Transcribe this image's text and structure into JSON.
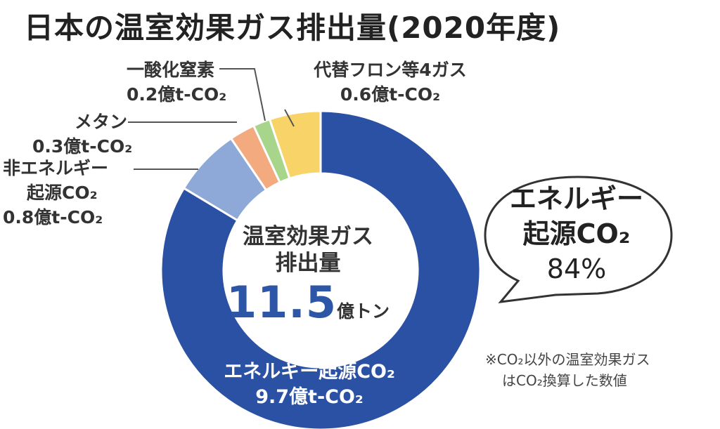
{
  "title": "日本の温室効果ガス排出量(2020年度)",
  "chart_data": {
    "type": "pie",
    "style": "donut",
    "slices": [
      {
        "name": "エネルギー起源CO₂",
        "value": 9.7,
        "value_label": "9.7億t-CO₂",
        "color": "#2a51a3"
      },
      {
        "name": "非エネルギー起源CO₂",
        "value": 0.8,
        "value_label": "0.8億t-CO₂",
        "color": "#8ea8d8"
      },
      {
        "name": "メタン",
        "value": 0.3,
        "value_label": "0.3億t-CO₂",
        "color": "#f3aa7e"
      },
      {
        "name": "一酸化窒素",
        "value": 0.2,
        "value_label": "0.2億t-CO₂",
        "color": "#a6d58b"
      },
      {
        "name": "代替フロン等4ガス",
        "value": 0.6,
        "value_label": "0.6億t-CO₂",
        "color": "#f8d468"
      }
    ],
    "total": {
      "line1": "温室効果ガス",
      "line2": "排出量",
      "value": "11.5",
      "unit": "億トン"
    }
  },
  "labels": {
    "inner_main_name": "エネルギー起源CO₂",
    "inner_main_value": "9.7億t-CO₂",
    "non_energy_line1": "非エネルギー",
    "non_energy_line2": "起源CO₂",
    "non_energy_value": "0.8億t-CO₂",
    "methane_name": "メタン",
    "methane_value": "0.3億t-CO₂",
    "n2o_name": "一酸化窒素",
    "n2o_value": "0.2億t-CO₂",
    "fluoro_name": "代替フロン等4ガス",
    "fluoro_value": "0.6億t-CO₂"
  },
  "callout": {
    "line1": "エネルギー",
    "line2": "起源CO₂",
    "line3": "84%"
  },
  "note": {
    "line1": "※CO₂以外の温室効果ガス",
    "line2": "はCO₂換算した数値"
  }
}
